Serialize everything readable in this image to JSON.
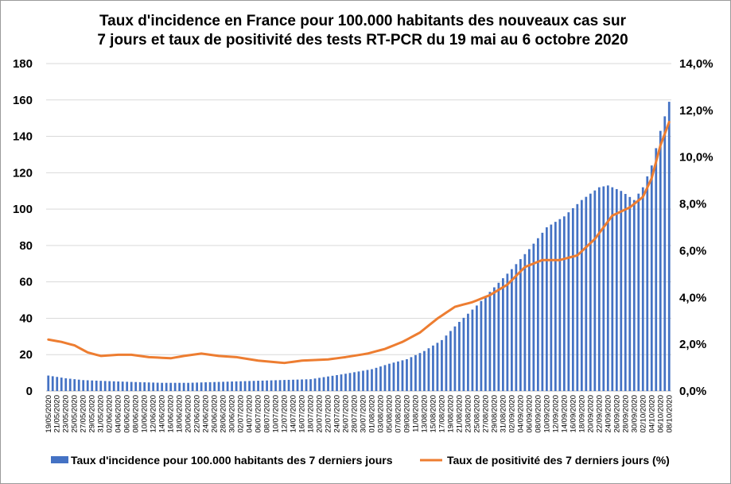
{
  "chart_data": {
    "type": "bar+line",
    "title_line1": "Taux d'incidence en France pour 100.000 habitants des nouveaux cas sur",
    "title_line2": "7 jours et taux de positivité des tests RT-PCR du 19 mai au 6 octobre 2020",
    "x_start_date": "2020-05-19",
    "x_end_date": "2020-10-08",
    "x_tick_labels": [
      "19/05/2020",
      "21/05/2020",
      "23/05/2020",
      "25/05/2020",
      "27/05/2020",
      "29/05/2020",
      "31/05/2020",
      "02/06/2020",
      "04/06/2020",
      "06/06/2020",
      "08/06/2020",
      "10/06/2020",
      "12/06/2020",
      "14/06/2020",
      "16/06/2020",
      "18/06/2020",
      "20/06/2020",
      "22/06/2020",
      "24/06/2020",
      "26/06/2020",
      "28/06/2020",
      "30/06/2020",
      "02/07/2020",
      "04/07/2020",
      "06/07/2020",
      "08/07/2020",
      "10/07/2020",
      "12/07/2020",
      "14/07/2020",
      "16/07/2020",
      "18/07/2020",
      "20/07/2020",
      "22/07/2020",
      "24/07/2020",
      "26/07/2020",
      "28/07/2020",
      "30/07/2020",
      "01/08/2020",
      "03/08/2020",
      "05/08/2020",
      "07/08/2020",
      "09/08/2020",
      "11/08/2020",
      "13/08/2020",
      "15/08/2020",
      "17/08/2020",
      "19/08/2020",
      "21/08/2020",
      "23/08/2020",
      "25/08/2020",
      "27/08/2020",
      "29/08/2020",
      "31/08/2020",
      "02/09/2020",
      "04/09/2020",
      "06/09/2020",
      "08/09/2020",
      "10/09/2020",
      "12/09/2020",
      "14/09/2020",
      "16/09/2020",
      "18/09/2020",
      "20/09/2020",
      "22/09/2020",
      "24/09/2020",
      "26/09/2020",
      "28/09/2020",
      "30/09/2020",
      "02/10/2020",
      "04/10/2020",
      "06/10/2020",
      "08/10/2020"
    ],
    "y_left": {
      "min": 0,
      "max": 180,
      "step": 20,
      "ticks": [
        "0",
        "20",
        "40",
        "60",
        "80",
        "100",
        "120",
        "140",
        "160",
        "180"
      ]
    },
    "y_right": {
      "min": 0,
      "max": 14,
      "step": 2,
      "ticks": [
        "0,0%",
        "2,0%",
        "4,0%",
        "6,0%",
        "8,0%",
        "10,0%",
        "12,0%",
        "14,0%"
      ]
    },
    "grid": true,
    "legend_position": "bottom",
    "series": [
      {
        "name": "Taux d'incidence  pour 100.000 habitants des 7 derniers jours",
        "kind": "bar",
        "axis": "left",
        "color": "#4472C4",
        "points": [
          [
            "2020-05-19",
            8.5
          ],
          [
            "2020-05-23",
            7
          ],
          [
            "2020-05-27",
            6
          ],
          [
            "2020-06-01",
            5.5
          ],
          [
            "2020-06-07",
            5
          ],
          [
            "2020-06-14",
            4.5
          ],
          [
            "2020-06-20",
            4.5
          ],
          [
            "2020-06-27",
            5
          ],
          [
            "2020-07-04",
            5.5
          ],
          [
            "2020-07-11",
            6
          ],
          [
            "2020-07-18",
            6.5
          ],
          [
            "2020-07-22",
            8
          ],
          [
            "2020-07-26",
            9.5
          ],
          [
            "2020-08-01",
            12
          ],
          [
            "2020-08-05",
            15
          ],
          [
            "2020-08-09",
            17.5
          ],
          [
            "2020-08-13",
            22
          ],
          [
            "2020-08-17",
            28
          ],
          [
            "2020-08-21",
            38
          ],
          [
            "2020-08-25",
            47
          ],
          [
            "2020-08-29",
            57
          ],
          [
            "2020-09-02",
            67
          ],
          [
            "2020-09-06",
            78
          ],
          [
            "2020-09-10",
            90
          ],
          [
            "2020-09-14",
            96
          ],
          [
            "2020-09-18",
            105
          ],
          [
            "2020-09-22",
            112
          ],
          [
            "2020-09-24",
            113
          ],
          [
            "2020-09-27",
            110
          ],
          [
            "2020-09-30",
            105
          ],
          [
            "2020-10-02",
            112
          ],
          [
            "2020-10-04",
            124
          ],
          [
            "2020-10-06",
            143
          ],
          [
            "2020-10-08",
            159
          ]
        ]
      },
      {
        "name": "Taux de positivité des 7 derniers jours (%)",
        "kind": "line",
        "axis": "right",
        "color": "#ED7D31",
        "points": [
          [
            "2020-05-19",
            2.2
          ],
          [
            "2020-05-22",
            2.1
          ],
          [
            "2020-05-25",
            1.95
          ],
          [
            "2020-05-28",
            1.65
          ],
          [
            "2020-05-31",
            1.5
          ],
          [
            "2020-06-04",
            1.55
          ],
          [
            "2020-06-07",
            1.55
          ],
          [
            "2020-06-11",
            1.45
          ],
          [
            "2020-06-16",
            1.4
          ],
          [
            "2020-06-19",
            1.5
          ],
          [
            "2020-06-23",
            1.6
          ],
          [
            "2020-06-27",
            1.5
          ],
          [
            "2020-07-01",
            1.45
          ],
          [
            "2020-07-06",
            1.3
          ],
          [
            "2020-07-12",
            1.2
          ],
          [
            "2020-07-16",
            1.3
          ],
          [
            "2020-07-22",
            1.35
          ],
          [
            "2020-07-26",
            1.45
          ],
          [
            "2020-07-31",
            1.6
          ],
          [
            "2020-08-04",
            1.8
          ],
          [
            "2020-08-08",
            2.1
          ],
          [
            "2020-08-12",
            2.5
          ],
          [
            "2020-08-16",
            3.1
          ],
          [
            "2020-08-20",
            3.6
          ],
          [
            "2020-08-24",
            3.8
          ],
          [
            "2020-08-28",
            4.1
          ],
          [
            "2020-09-01",
            4.55
          ],
          [
            "2020-09-05",
            5.3
          ],
          [
            "2020-09-09",
            5.6
          ],
          [
            "2020-09-13",
            5.6
          ],
          [
            "2020-09-17",
            5.8
          ],
          [
            "2020-09-21",
            6.5
          ],
          [
            "2020-09-25",
            7.5
          ],
          [
            "2020-09-29",
            7.85
          ],
          [
            "2020-10-02",
            8.3
          ],
          [
            "2020-10-04",
            9.1
          ],
          [
            "2020-10-06",
            10.5
          ],
          [
            "2020-10-08",
            11.5
          ]
        ]
      }
    ]
  }
}
